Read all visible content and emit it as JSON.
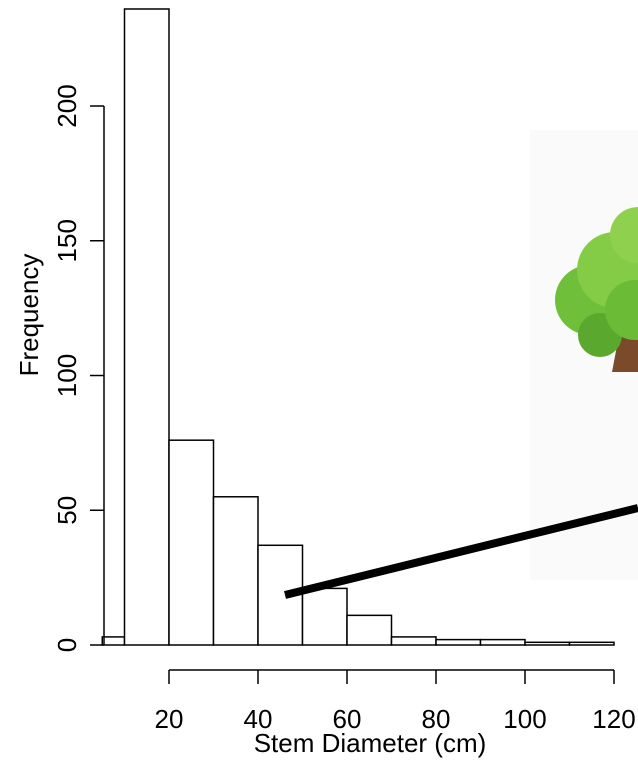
{
  "chart_data": {
    "type": "histogram",
    "xlabel": "Stem Diameter (cm)",
    "ylabel": "Frequency",
    "bins": [
      5,
      10,
      20,
      30,
      40,
      50,
      60,
      70,
      80,
      90,
      100,
      110,
      120
    ],
    "values": [
      3,
      236,
      76,
      55,
      37,
      21,
      11,
      3,
      2,
      2,
      1,
      1
    ],
    "color": "#ffffff",
    "xlim": [
      5,
      120
    ],
    "ylim": [
      0,
      236
    ],
    "xticks": [
      20,
      40,
      60,
      80,
      100,
      120
    ],
    "yticks": [
      0,
      50,
      100,
      150,
      200
    ]
  }
}
